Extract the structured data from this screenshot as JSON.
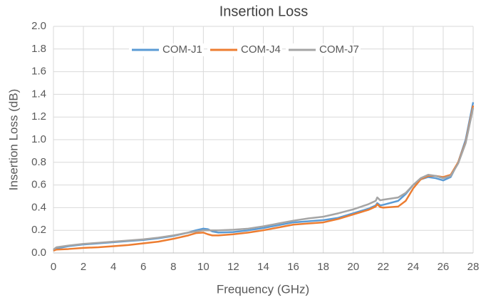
{
  "chart_data": {
    "type": "line",
    "title": "Insertion Loss",
    "xlabel": "Frequency (GHz)",
    "ylabel": "Insertion Loss (dB)",
    "x": [
      0,
      0.2,
      1,
      2,
      3,
      4,
      5,
      6,
      7,
      8,
      9,
      9.5,
      10,
      10.3,
      10.6,
      11,
      12,
      13,
      14,
      15,
      16,
      17,
      18,
      19,
      20,
      21,
      21.5,
      21.6,
      21.8,
      22,
      23,
      23.5,
      24,
      24.5,
      25,
      25.5,
      26,
      26.5,
      27,
      27.5,
      28
    ],
    "series": [
      {
        "name": "COM-J1",
        "color": "#5b9bd5",
        "values": [
          0.02,
          0.04,
          0.06,
          0.075,
          0.085,
          0.095,
          0.105,
          0.115,
          0.13,
          0.15,
          0.18,
          0.2,
          0.215,
          0.21,
          0.19,
          0.18,
          0.185,
          0.2,
          0.22,
          0.245,
          0.27,
          0.28,
          0.29,
          0.31,
          0.35,
          0.39,
          0.42,
          0.44,
          0.42,
          0.425,
          0.46,
          0.52,
          0.6,
          0.65,
          0.67,
          0.66,
          0.64,
          0.67,
          0.8,
          1.0,
          1.33
        ]
      },
      {
        "name": "COM-J4",
        "color": "#ed7d31",
        "values": [
          0.02,
          0.03,
          0.035,
          0.045,
          0.05,
          0.06,
          0.07,
          0.085,
          0.1,
          0.125,
          0.155,
          0.175,
          0.18,
          0.165,
          0.155,
          0.155,
          0.165,
          0.18,
          0.2,
          0.225,
          0.25,
          0.26,
          0.27,
          0.3,
          0.34,
          0.38,
          0.41,
          0.43,
          0.405,
          0.4,
          0.41,
          0.46,
          0.57,
          0.65,
          0.68,
          0.68,
          0.67,
          0.69,
          0.8,
          0.98,
          1.3
        ]
      },
      {
        "name": "COM-J7",
        "color": "#a5a5a5",
        "values": [
          0.03,
          0.05,
          0.065,
          0.08,
          0.09,
          0.1,
          0.11,
          0.12,
          0.135,
          0.155,
          0.18,
          0.19,
          0.2,
          0.2,
          0.2,
          0.2,
          0.205,
          0.215,
          0.235,
          0.26,
          0.285,
          0.305,
          0.32,
          0.35,
          0.385,
          0.43,
          0.46,
          0.49,
          0.465,
          0.47,
          0.49,
          0.53,
          0.6,
          0.66,
          0.69,
          0.68,
          0.66,
          0.68,
          0.79,
          0.97,
          1.28
        ]
      }
    ],
    "xlim": [
      0,
      28
    ],
    "xticks": [
      0,
      2,
      4,
      6,
      8,
      10,
      12,
      14,
      16,
      18,
      20,
      22,
      24,
      26,
      28
    ],
    "ylim": [
      0,
      2
    ],
    "yticks": [
      {
        "value": 0,
        "label": "0.0"
      },
      0.2,
      0.4,
      0.6,
      0.8,
      {
        "value": 1,
        "label": "1.0"
      },
      1.2,
      1.4,
      1.6,
      1.8,
      {
        "value": 2,
        "label": "2.0"
      }
    ],
    "grid": true,
    "legend": "top"
  }
}
